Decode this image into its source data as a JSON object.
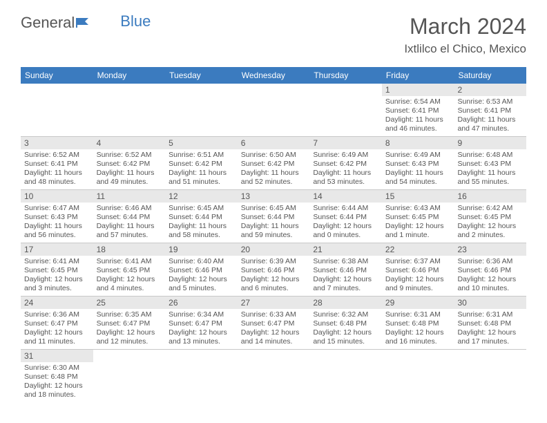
{
  "logo": {
    "part1": "General",
    "part2": "Blue"
  },
  "title": "March 2024",
  "location": "Ixtlilco el Chico, Mexico",
  "colors": {
    "header_bg": "#3b7bbf",
    "header_text": "#ffffff",
    "daynum_bg": "#e8e8e8",
    "text": "#555555",
    "row_border": "#c8c8c8"
  },
  "day_headers": [
    "Sunday",
    "Monday",
    "Tuesday",
    "Wednesday",
    "Thursday",
    "Friday",
    "Saturday"
  ],
  "weeks": [
    [
      {
        "n": "",
        "lines": []
      },
      {
        "n": "",
        "lines": []
      },
      {
        "n": "",
        "lines": []
      },
      {
        "n": "",
        "lines": []
      },
      {
        "n": "",
        "lines": []
      },
      {
        "n": "1",
        "lines": [
          "Sunrise: 6:54 AM",
          "Sunset: 6:41 PM",
          "Daylight: 11 hours",
          "and 46 minutes."
        ]
      },
      {
        "n": "2",
        "lines": [
          "Sunrise: 6:53 AM",
          "Sunset: 6:41 PM",
          "Daylight: 11 hours",
          "and 47 minutes."
        ]
      }
    ],
    [
      {
        "n": "3",
        "lines": [
          "Sunrise: 6:52 AM",
          "Sunset: 6:41 PM",
          "Daylight: 11 hours",
          "and 48 minutes."
        ]
      },
      {
        "n": "4",
        "lines": [
          "Sunrise: 6:52 AM",
          "Sunset: 6:42 PM",
          "Daylight: 11 hours",
          "and 49 minutes."
        ]
      },
      {
        "n": "5",
        "lines": [
          "Sunrise: 6:51 AM",
          "Sunset: 6:42 PM",
          "Daylight: 11 hours",
          "and 51 minutes."
        ]
      },
      {
        "n": "6",
        "lines": [
          "Sunrise: 6:50 AM",
          "Sunset: 6:42 PM",
          "Daylight: 11 hours",
          "and 52 minutes."
        ]
      },
      {
        "n": "7",
        "lines": [
          "Sunrise: 6:49 AM",
          "Sunset: 6:42 PM",
          "Daylight: 11 hours",
          "and 53 minutes."
        ]
      },
      {
        "n": "8",
        "lines": [
          "Sunrise: 6:49 AM",
          "Sunset: 6:43 PM",
          "Daylight: 11 hours",
          "and 54 minutes."
        ]
      },
      {
        "n": "9",
        "lines": [
          "Sunrise: 6:48 AM",
          "Sunset: 6:43 PM",
          "Daylight: 11 hours",
          "and 55 minutes."
        ]
      }
    ],
    [
      {
        "n": "10",
        "lines": [
          "Sunrise: 6:47 AM",
          "Sunset: 6:43 PM",
          "Daylight: 11 hours",
          "and 56 minutes."
        ]
      },
      {
        "n": "11",
        "lines": [
          "Sunrise: 6:46 AM",
          "Sunset: 6:44 PM",
          "Daylight: 11 hours",
          "and 57 minutes."
        ]
      },
      {
        "n": "12",
        "lines": [
          "Sunrise: 6:45 AM",
          "Sunset: 6:44 PM",
          "Daylight: 11 hours",
          "and 58 minutes."
        ]
      },
      {
        "n": "13",
        "lines": [
          "Sunrise: 6:45 AM",
          "Sunset: 6:44 PM",
          "Daylight: 11 hours",
          "and 59 minutes."
        ]
      },
      {
        "n": "14",
        "lines": [
          "Sunrise: 6:44 AM",
          "Sunset: 6:44 PM",
          "Daylight: 12 hours",
          "and 0 minutes."
        ]
      },
      {
        "n": "15",
        "lines": [
          "Sunrise: 6:43 AM",
          "Sunset: 6:45 PM",
          "Daylight: 12 hours",
          "and 1 minute."
        ]
      },
      {
        "n": "16",
        "lines": [
          "Sunrise: 6:42 AM",
          "Sunset: 6:45 PM",
          "Daylight: 12 hours",
          "and 2 minutes."
        ]
      }
    ],
    [
      {
        "n": "17",
        "lines": [
          "Sunrise: 6:41 AM",
          "Sunset: 6:45 PM",
          "Daylight: 12 hours",
          "and 3 minutes."
        ]
      },
      {
        "n": "18",
        "lines": [
          "Sunrise: 6:41 AM",
          "Sunset: 6:45 PM",
          "Daylight: 12 hours",
          "and 4 minutes."
        ]
      },
      {
        "n": "19",
        "lines": [
          "Sunrise: 6:40 AM",
          "Sunset: 6:46 PM",
          "Daylight: 12 hours",
          "and 5 minutes."
        ]
      },
      {
        "n": "20",
        "lines": [
          "Sunrise: 6:39 AM",
          "Sunset: 6:46 PM",
          "Daylight: 12 hours",
          "and 6 minutes."
        ]
      },
      {
        "n": "21",
        "lines": [
          "Sunrise: 6:38 AM",
          "Sunset: 6:46 PM",
          "Daylight: 12 hours",
          "and 7 minutes."
        ]
      },
      {
        "n": "22",
        "lines": [
          "Sunrise: 6:37 AM",
          "Sunset: 6:46 PM",
          "Daylight: 12 hours",
          "and 9 minutes."
        ]
      },
      {
        "n": "23",
        "lines": [
          "Sunrise: 6:36 AM",
          "Sunset: 6:46 PM",
          "Daylight: 12 hours",
          "and 10 minutes."
        ]
      }
    ],
    [
      {
        "n": "24",
        "lines": [
          "Sunrise: 6:36 AM",
          "Sunset: 6:47 PM",
          "Daylight: 12 hours",
          "and 11 minutes."
        ]
      },
      {
        "n": "25",
        "lines": [
          "Sunrise: 6:35 AM",
          "Sunset: 6:47 PM",
          "Daylight: 12 hours",
          "and 12 minutes."
        ]
      },
      {
        "n": "26",
        "lines": [
          "Sunrise: 6:34 AM",
          "Sunset: 6:47 PM",
          "Daylight: 12 hours",
          "and 13 minutes."
        ]
      },
      {
        "n": "27",
        "lines": [
          "Sunrise: 6:33 AM",
          "Sunset: 6:47 PM",
          "Daylight: 12 hours",
          "and 14 minutes."
        ]
      },
      {
        "n": "28",
        "lines": [
          "Sunrise: 6:32 AM",
          "Sunset: 6:48 PM",
          "Daylight: 12 hours",
          "and 15 minutes."
        ]
      },
      {
        "n": "29",
        "lines": [
          "Sunrise: 6:31 AM",
          "Sunset: 6:48 PM",
          "Daylight: 12 hours",
          "and 16 minutes."
        ]
      },
      {
        "n": "30",
        "lines": [
          "Sunrise: 6:31 AM",
          "Sunset: 6:48 PM",
          "Daylight: 12 hours",
          "and 17 minutes."
        ]
      }
    ],
    [
      {
        "n": "31",
        "lines": [
          "Sunrise: 6:30 AM",
          "Sunset: 6:48 PM",
          "Daylight: 12 hours",
          "and 18 minutes."
        ]
      },
      {
        "n": "",
        "lines": []
      },
      {
        "n": "",
        "lines": []
      },
      {
        "n": "",
        "lines": []
      },
      {
        "n": "",
        "lines": []
      },
      {
        "n": "",
        "lines": []
      },
      {
        "n": "",
        "lines": []
      }
    ]
  ]
}
